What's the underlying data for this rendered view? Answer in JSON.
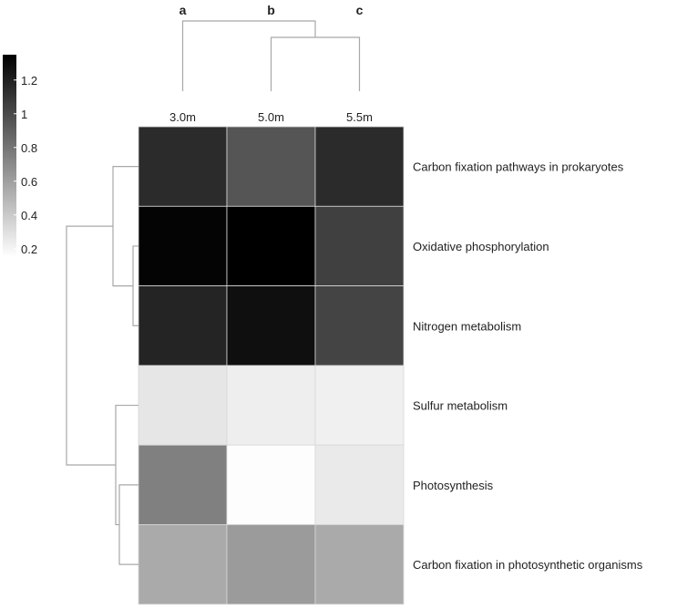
{
  "chart_data": {
    "type": "heatmap",
    "column_letters": [
      "a",
      "b",
      "c"
    ],
    "columns": [
      "3.0m",
      "5.0m",
      "5.5m"
    ],
    "rows": [
      "Carbon fixation pathways in prokaryotes",
      "Oxidative phosphorylation",
      "Nitrogen metabolism",
      "Sulfur metabolism",
      "Photosynthesis",
      "Carbon fixation in photosynthetic organisms"
    ],
    "values": [
      [
        1.15,
        0.95,
        1.15
      ],
      [
        1.33,
        1.35,
        1.05
      ],
      [
        1.18,
        1.28,
        1.03
      ],
      [
        0.27,
        0.23,
        0.22
      ],
      [
        0.75,
        0.16,
        0.25
      ],
      [
        0.55,
        0.62,
        0.55
      ]
    ],
    "color_scale": {
      "min": 0.15,
      "max": 1.35,
      "low_color": "#ffffff",
      "high_color": "#000000",
      "ticks": [
        "1.2",
        "1",
        "0.8",
        "0.6",
        "0.4",
        "0.2"
      ],
      "tick_values": [
        1.2,
        1.0,
        0.8,
        0.6,
        0.4,
        0.2
      ]
    },
    "column_dendrogram": [
      [
        1,
        2
      ],
      [
        0,
        "1-2"
      ]
    ],
    "row_dendrogram": [
      [
        1,
        2
      ],
      [
        0,
        "1-2"
      ],
      [
        4,
        5
      ],
      [
        3,
        "4-5"
      ],
      [
        "0-2",
        "3-5"
      ]
    ]
  },
  "colors": {
    "dendrogram": "#a8a8a8",
    "cell_border": "#d8d8d8"
  }
}
